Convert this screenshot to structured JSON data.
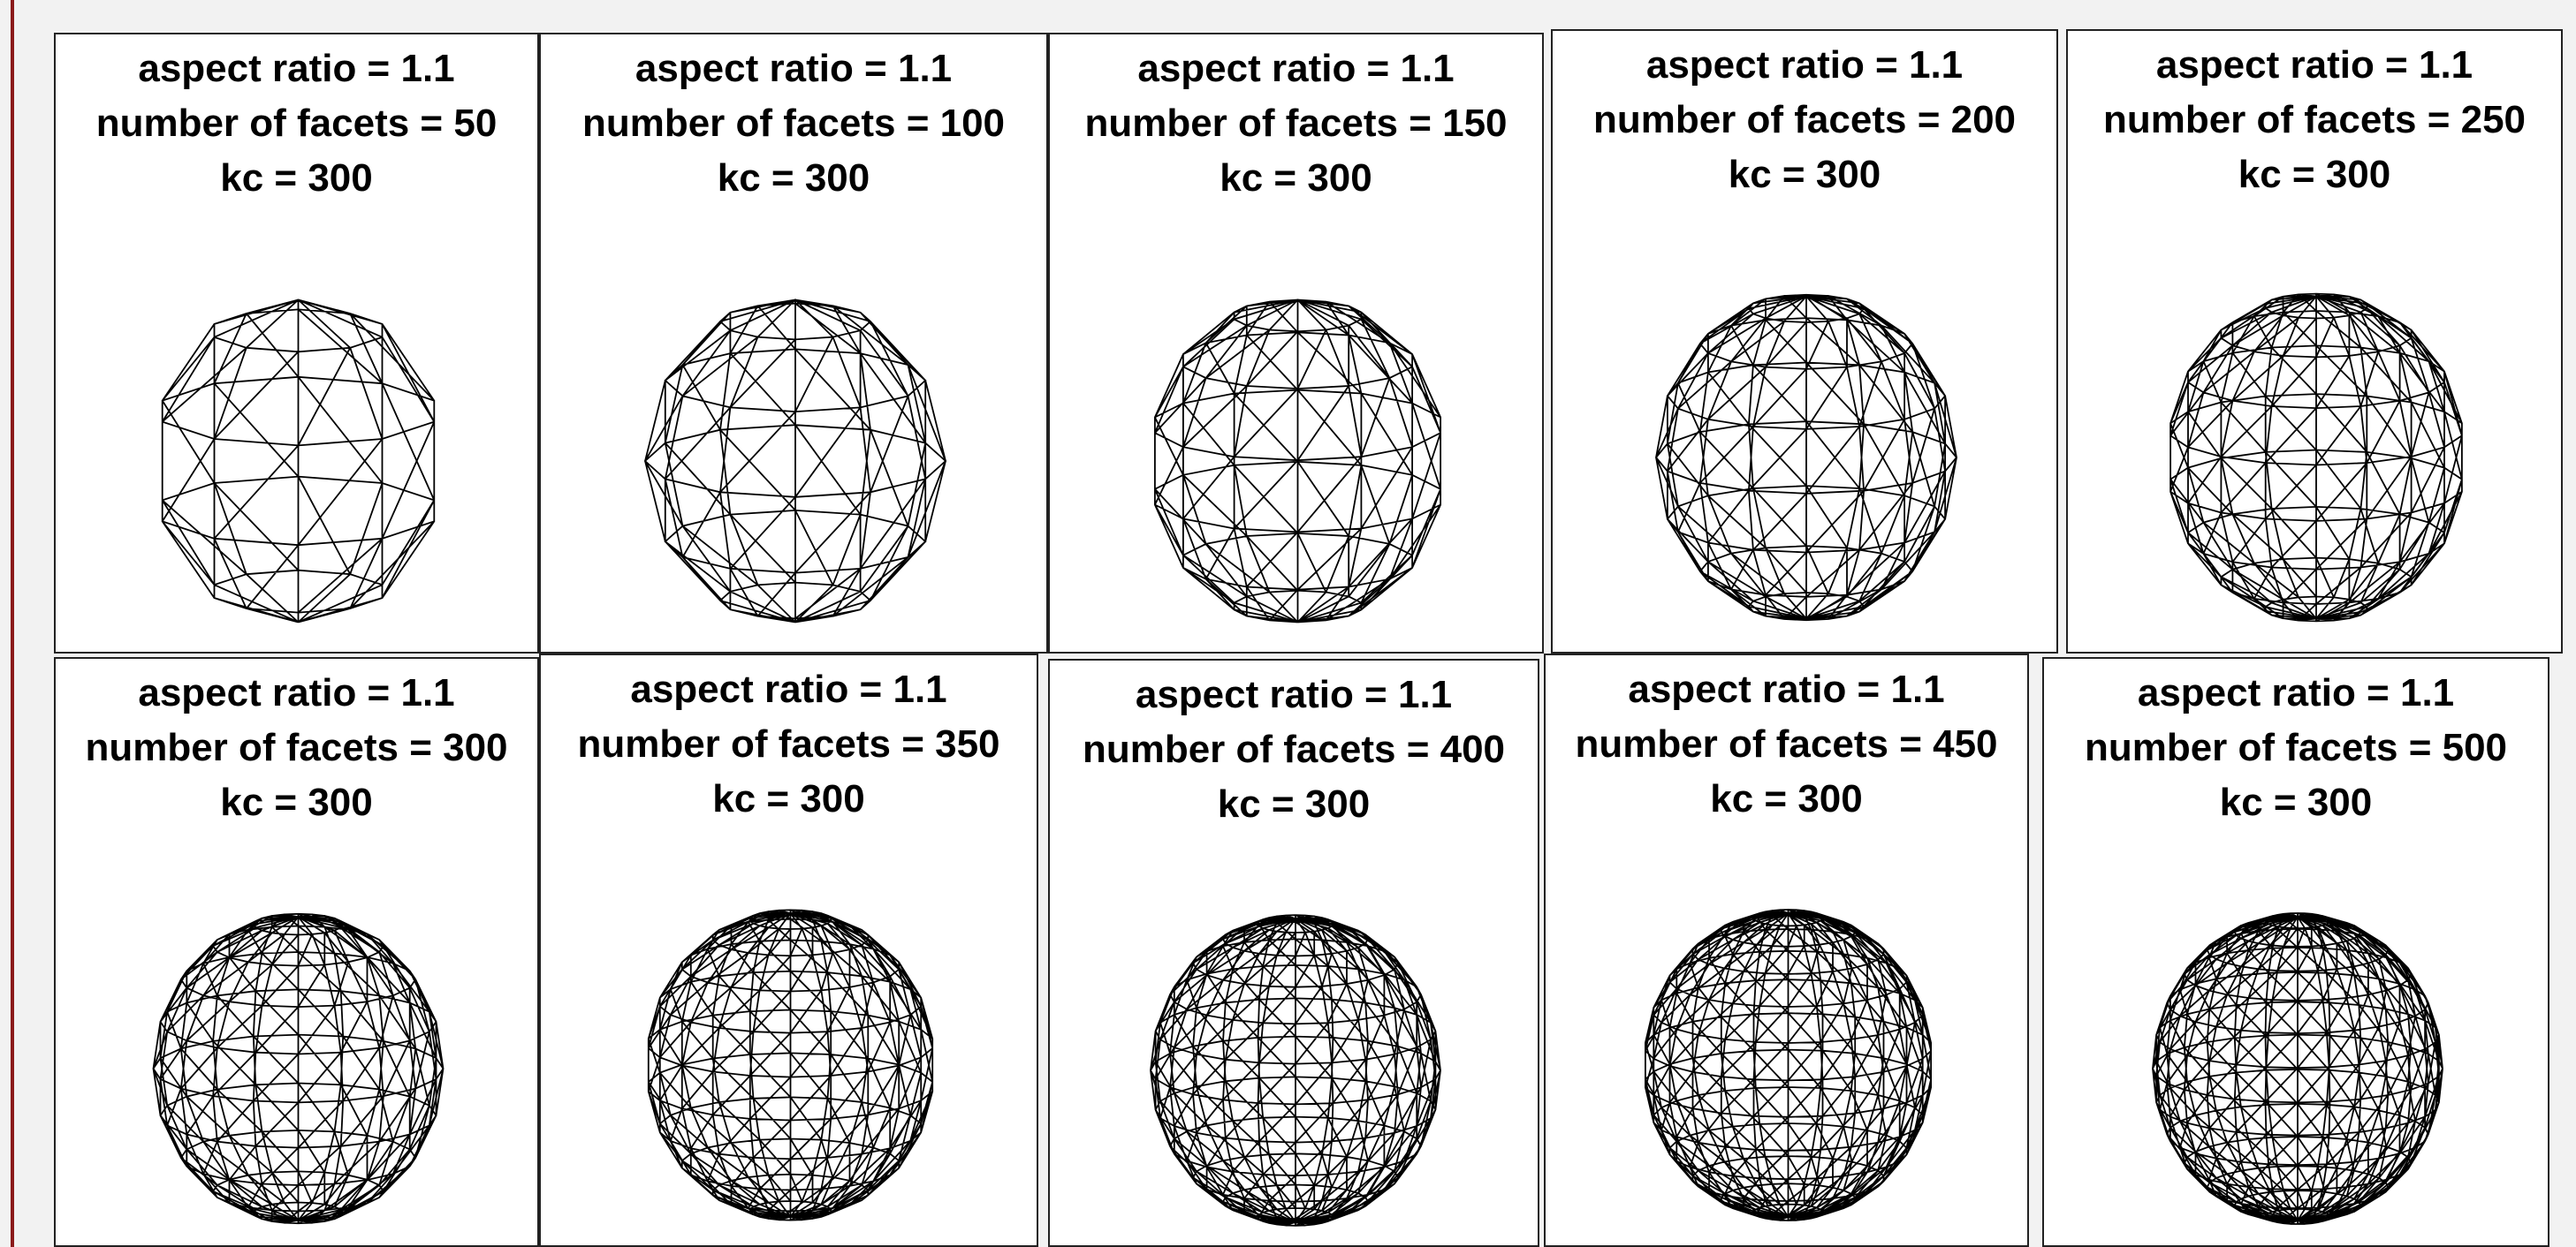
{
  "panels": [
    {
      "lines": [
        "aspect ratio = 1.1",
        "number of facets = 50",
        "kc = 300"
      ]
    },
    {
      "lines": [
        "aspect ratio = 1.1",
        "number of facets = 100",
        "kc = 300"
      ]
    },
    {
      "lines": [
        "aspect ratio = 1.1",
        "number of facets = 150",
        "kc = 300"
      ]
    },
    {
      "lines": [
        "aspect ratio = 1.1",
        "number of facets = 200",
        "kc = 300"
      ]
    },
    {
      "lines": [
        "aspect ratio = 1.1",
        "number of facets = 250",
        "kc = 300"
      ]
    },
    {
      "lines": [
        "aspect ratio = 1.1",
        "number of facets = 300",
        "kc = 300"
      ]
    },
    {
      "lines": [
        "aspect ratio = 1.1",
        "number of facets = 350",
        "kc = 300"
      ]
    },
    {
      "lines": [
        "aspect ratio = 1.1",
        "number of facets = 400",
        "kc = 300"
      ]
    },
    {
      "lines": [
        "aspect ratio = 1.1",
        "number of facets = 450",
        "kc = 300"
      ]
    },
    {
      "lines": [
        "aspect ratio = 1.1",
        "number of facets = 500",
        "kc = 300"
      ]
    }
  ]
}
